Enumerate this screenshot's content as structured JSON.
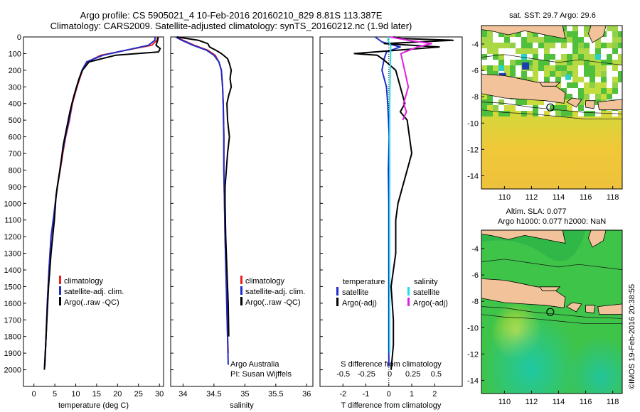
{
  "title_line1": "Argo profile: CS 5905021_4 10-Feb-2016 20160210_829 8.81S 113.387E",
  "title_line2": "Climatology: CARS2009. Satellite-adjusted climatology: synTS_20160212.nc (1.9d later)",
  "credit": "Argo Australia",
  "pi": "PI: Susan Wijffels",
  "imos_stamp": "©IMOS 19-Feb-2016 20:38:55",
  "colors": {
    "climatology": "#e8211b",
    "satellite": "#1e2ccc",
    "argo": "#000000",
    "s_diff_sat": "#22dde8",
    "s_diff_argo": "#dd22dd"
  },
  "chart_data": [
    {
      "type": "line",
      "xlabel": "temperature (deg C)",
      "xticks": [
        0,
        5,
        10,
        15,
        20,
        25,
        30
      ],
      "xlim": [
        -2.5,
        31
      ],
      "ylim": [
        2100,
        0
      ],
      "yticks": [
        0,
        100,
        200,
        300,
        400,
        500,
        600,
        700,
        800,
        900,
        1000,
        1100,
        1200,
        1300,
        1400,
        1500,
        1600,
        1700,
        1800,
        1900,
        2000
      ],
      "legend": [
        "climatology",
        "satellite-adj. clim.",
        "Argo(..raw -QC)"
      ],
      "series": [
        {
          "name": "climatology",
          "color": "#e8211b",
          "x": [
            29.6,
            29.4,
            28.2,
            22,
            16,
            12.8,
            11.6,
            10.3,
            9.2,
            8.5,
            7.6,
            6.9,
            6.3,
            5.6,
            5.1,
            4.7,
            4.1,
            3.6,
            3.2,
            2.9,
            2.6
          ],
          "y": [
            0,
            20,
            50,
            80,
            110,
            150,
            200,
            300,
            400,
            500,
            600,
            700,
            800,
            900,
            1000,
            1100,
            1200,
            1400,
            1600,
            1800,
            1980
          ]
        },
        {
          "name": "satellite-adj. clim.",
          "color": "#1e2ccc",
          "x": [
            29,
            28.9,
            27.4,
            22,
            16.5,
            12.6,
            11.5,
            10.2,
            9.1,
            8.4,
            7.5,
            6.8,
            6.2,
            5.6,
            5.1,
            4.6,
            4.1,
            3.6,
            3.2,
            2.9,
            2.6
          ],
          "y": [
            0,
            20,
            50,
            80,
            110,
            150,
            200,
            300,
            400,
            500,
            600,
            700,
            800,
            900,
            1000,
            1100,
            1200,
            1400,
            1600,
            1800,
            1980
          ]
        },
        {
          "name": "Argo(..raw -QC)",
          "color": "#000000",
          "x": [
            29.7,
            29.6,
            29.2,
            30.2,
            29.8,
            19.5,
            13.2,
            11.6,
            10.8,
            10.2,
            9.6,
            9.1,
            8.6,
            7.8,
            7.0,
            6.5,
            5.9,
            5.3,
            4.9,
            4.1,
            3.5,
            3.1,
            2.8,
            2.5
          ],
          "y": [
            0,
            20,
            50,
            70,
            90,
            110,
            150,
            200,
            250,
            300,
            350,
            400,
            450,
            550,
            650,
            750,
            850,
            950,
            1100,
            1300,
            1500,
            1700,
            1850,
            2000
          ]
        }
      ]
    },
    {
      "type": "line",
      "xlabel": "salinity",
      "xticks": [
        34,
        34.5,
        35,
        35.5,
        36
      ],
      "xlim": [
        33.8,
        36.1
      ],
      "ylim": [
        2100,
        0
      ],
      "legend": [
        "climatology",
        "satellite-adj. clim.",
        "Argo(..raw -QC)"
      ],
      "series": [
        {
          "name": "climatology",
          "color": "#e8211b",
          "x": [
            33.9,
            34.0,
            34.18,
            34.4,
            34.52,
            34.58,
            34.62,
            34.64,
            34.65,
            34.66,
            34.66,
            34.67,
            34.68,
            34.7,
            34.72,
            34.73
          ],
          "y": [
            0,
            20,
            50,
            80,
            110,
            150,
            200,
            300,
            400,
            600,
            800,
            1000,
            1200,
            1500,
            1800,
            1900
          ]
        },
        {
          "name": "satellite-adj. clim.",
          "color": "#1e2ccc",
          "x": [
            33.88,
            33.98,
            34.16,
            34.38,
            34.5,
            34.58,
            34.62,
            34.64,
            34.65,
            34.66,
            34.66,
            34.67,
            34.68,
            34.7,
            34.72,
            34.73
          ],
          "y": [
            0,
            20,
            50,
            80,
            110,
            150,
            200,
            300,
            400,
            600,
            800,
            1000,
            1200,
            1500,
            1800,
            1970
          ]
        },
        {
          "name": "Argo(..raw -QC)",
          "color": "#000000",
          "x": [
            33.9,
            34.25,
            34.4,
            34.43,
            34.53,
            34.62,
            34.72,
            34.75,
            34.78,
            34.76,
            34.78,
            34.74,
            34.71,
            34.72,
            34.75,
            34.72,
            34.7,
            34.68,
            34.68,
            34.69,
            34.71,
            34.73,
            34.74
          ],
          "y": [
            0,
            20,
            40,
            60,
            80,
            100,
            130,
            160,
            200,
            250,
            300,
            350,
            400,
            500,
            600,
            700,
            800,
            900,
            1000,
            1200,
            1400,
            1600,
            1800
          ]
        }
      ]
    },
    {
      "type": "line",
      "xlabel": "T difference from climatology",
      "xlabel_top": "S difference from climatology",
      "xticks": [
        -2,
        -1,
        0,
        1,
        2
      ],
      "xticks_top": [
        -0.5,
        -0.25,
        0,
        0.25,
        0.5
      ],
      "xlim": [
        -3,
        3.2
      ],
      "ylim": [
        2100,
        0
      ],
      "legend_left_title": "temperature",
      "legend_right_title": "salinity",
      "legend_left": [
        "satellite",
        "Argo(-adj)"
      ],
      "legend_right": [
        "satellite",
        "Argo(-adj)"
      ],
      "series": [
        {
          "name": "satellite",
          "axis": "T",
          "color": "#1e2ccc",
          "x": [
            -0.6,
            -0.3,
            0.5,
            -0.1,
            -0.2,
            -0.3,
            -0.1,
            -0.05,
            0.02,
            -0.02,
            0,
            0,
            0
          ],
          "y": [
            0,
            30,
            60,
            90,
            130,
            200,
            300,
            400,
            600,
            800,
            1000,
            1400,
            1980
          ]
        },
        {
          "name": "Argo(-adj)",
          "axis": "T",
          "color": "#000000",
          "x": [
            0.2,
            0.6,
            2.8,
            -0.2,
            2.2,
            -1.5,
            -0.5,
            -0.2,
            0.3,
            0.5,
            0.7,
            0.5,
            0.8,
            0.9,
            1,
            0.8,
            0.6,
            0.4,
            0.3,
            0.3,
            0.1,
            0.2,
            0.2,
            0.1
          ],
          "y": [
            0,
            10,
            20,
            40,
            60,
            100,
            110,
            140,
            200,
            300,
            400,
            450,
            500,
            600,
            700,
            800,
            900,
            1000,
            1100,
            1300,
            1500,
            1700,
            1850,
            2000
          ]
        },
        {
          "name": "satellite",
          "axis": "S",
          "color": "#22dde8",
          "x": [
            -0.01,
            -0.02,
            0.01,
            0.01,
            0.005,
            0,
            0,
            0,
            0,
            0,
            0
          ],
          "y": [
            0,
            20,
            50,
            100,
            200,
            400,
            600,
            800,
            1000,
            1400,
            1900
          ]
        },
        {
          "name": "Argo(-adj)",
          "axis": "S",
          "color": "#dd22dd",
          "x": [
            0,
            0.2,
            0.45,
            0.3,
            0.12,
            0.16,
            0.2,
            0.15,
            0.18,
            0.14
          ],
          "y": [
            0,
            20,
            40,
            60,
            100,
            200,
            300,
            400,
            450,
            500
          ]
        }
      ]
    },
    {
      "type": "heatmap",
      "title": "sat. SST: 29.7  Argo: 29.6",
      "xticks": [
        110,
        112,
        114,
        116,
        118
      ],
      "yticks": [
        -4,
        -6,
        -8,
        -10,
        -12,
        -14
      ],
      "xlim": [
        108.3,
        118.7
      ],
      "ylim": [
        -15,
        -2.6
      ],
      "argo_marker": [
        113.387,
        -8.81
      ]
    },
    {
      "type": "heatmap",
      "title": "Altim. SLA: 0.077",
      "subtitle": "Argo h1000: 0.077  h2000: NaN",
      "xticks": [
        110,
        112,
        114,
        116,
        118
      ],
      "yticks": [
        -4,
        -6,
        -8,
        -10,
        -12,
        -14
      ],
      "xlim": [
        108.3,
        118.7
      ],
      "ylim": [
        -15,
        -2.6
      ],
      "argo_marker": [
        113.387,
        -8.81
      ]
    }
  ]
}
